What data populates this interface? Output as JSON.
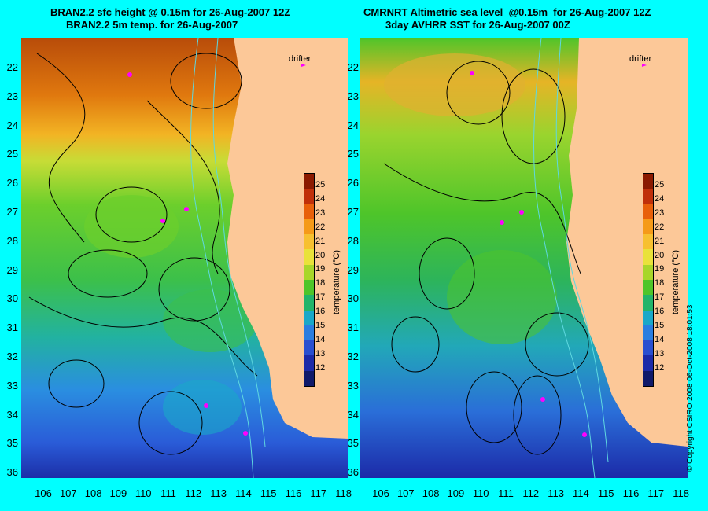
{
  "left_panel": {
    "title_line1": "BRAN2.2 sfc height @ 0.15m for 26-Aug-2007 12Z",
    "title_line2": "BRAN2.2 5m temp. for 26-Aug-2007"
  },
  "right_panel": {
    "title_line1": "CMRNRT Altimetric sea level  @0.15m  for 26-Aug-2007 12Z",
    "title_line2": "3day AVHRR SST for 26-Aug-2007 00Z"
  },
  "lat_labels": [
    "22",
    "23",
    "24",
    "25",
    "26",
    "27",
    "28",
    "29",
    "30",
    "31",
    "32",
    "33",
    "34",
    "35",
    "36"
  ],
  "lon_labels": [
    "106",
    "107",
    "108",
    "109",
    "110",
    "111",
    "112",
    "113",
    "114",
    "115",
    "116",
    "117",
    "118"
  ],
  "colorbar": {
    "title": "temperature (°C)",
    "ticks": [
      "25",
      "24",
      "23",
      "22",
      "21",
      "20",
      "19",
      "18",
      "17",
      "16",
      "15",
      "14",
      "13",
      "12"
    ],
    "colors": [
      "#8b1a00",
      "#c0300a",
      "#e8600a",
      "#f59a18",
      "#f7c030",
      "#e9e23a",
      "#a8d62a",
      "#4ec52a",
      "#22b46a",
      "#1aa8c8",
      "#2a7ee0",
      "#2a4fd0",
      "#1c2aa8",
      "#101a6a"
    ]
  },
  "legend": {
    "drifter_label": "drifter"
  },
  "copyright": "© Copyright CSIRO 2008   06-Oct-2008 18:01:53",
  "colors": {
    "background": "#00ffff",
    "land": "#fcc898",
    "contour": "#000000",
    "isobath": "#5fd8e0",
    "drifter": "#ff00ff"
  }
}
